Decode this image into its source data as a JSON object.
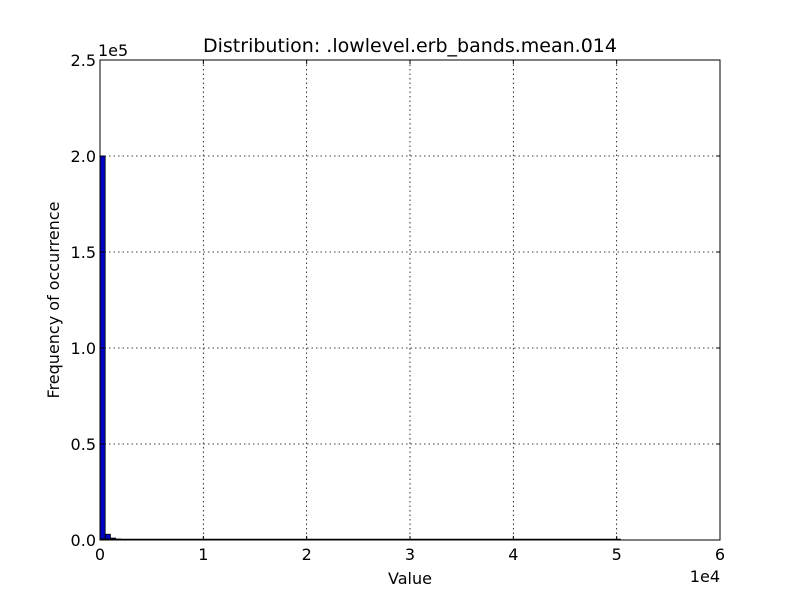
{
  "chart_data": {
    "type": "bar",
    "title": "Distribution: .lowlevel.erb_bands.mean.014",
    "xlabel": "Value",
    "ylabel": "Frequency of occurrence",
    "x_multiplier_label": "1e4",
    "y_multiplier_label": "1e5",
    "xlim": [
      0,
      60000
    ],
    "ylim": [
      0,
      250000
    ],
    "x_ticks": [
      0,
      10000,
      20000,
      30000,
      40000,
      50000,
      60000
    ],
    "x_tick_labels": [
      "0",
      "1",
      "2",
      "3",
      "4",
      "5",
      "6"
    ],
    "y_ticks": [
      0,
      50000,
      100000,
      150000,
      200000,
      250000
    ],
    "y_tick_labels": [
      "0.0",
      "0.5",
      "1.0",
      "1.5",
      "2.0",
      "2.5"
    ],
    "grid": true,
    "bar_color": "#0000bf",
    "bin_width": 504,
    "bins": [
      {
        "x": 0,
        "count": 200000
      },
      {
        "x": 504,
        "count": 3000
      },
      {
        "x": 1008,
        "count": 1000
      },
      {
        "x": 1512,
        "count": 500
      },
      {
        "x": 2016,
        "count": 250
      },
      {
        "x": 2520,
        "count": 120
      },
      {
        "x": 3024,
        "count": 60
      }
    ],
    "baseline_extent": [
      0,
      50400
    ]
  }
}
